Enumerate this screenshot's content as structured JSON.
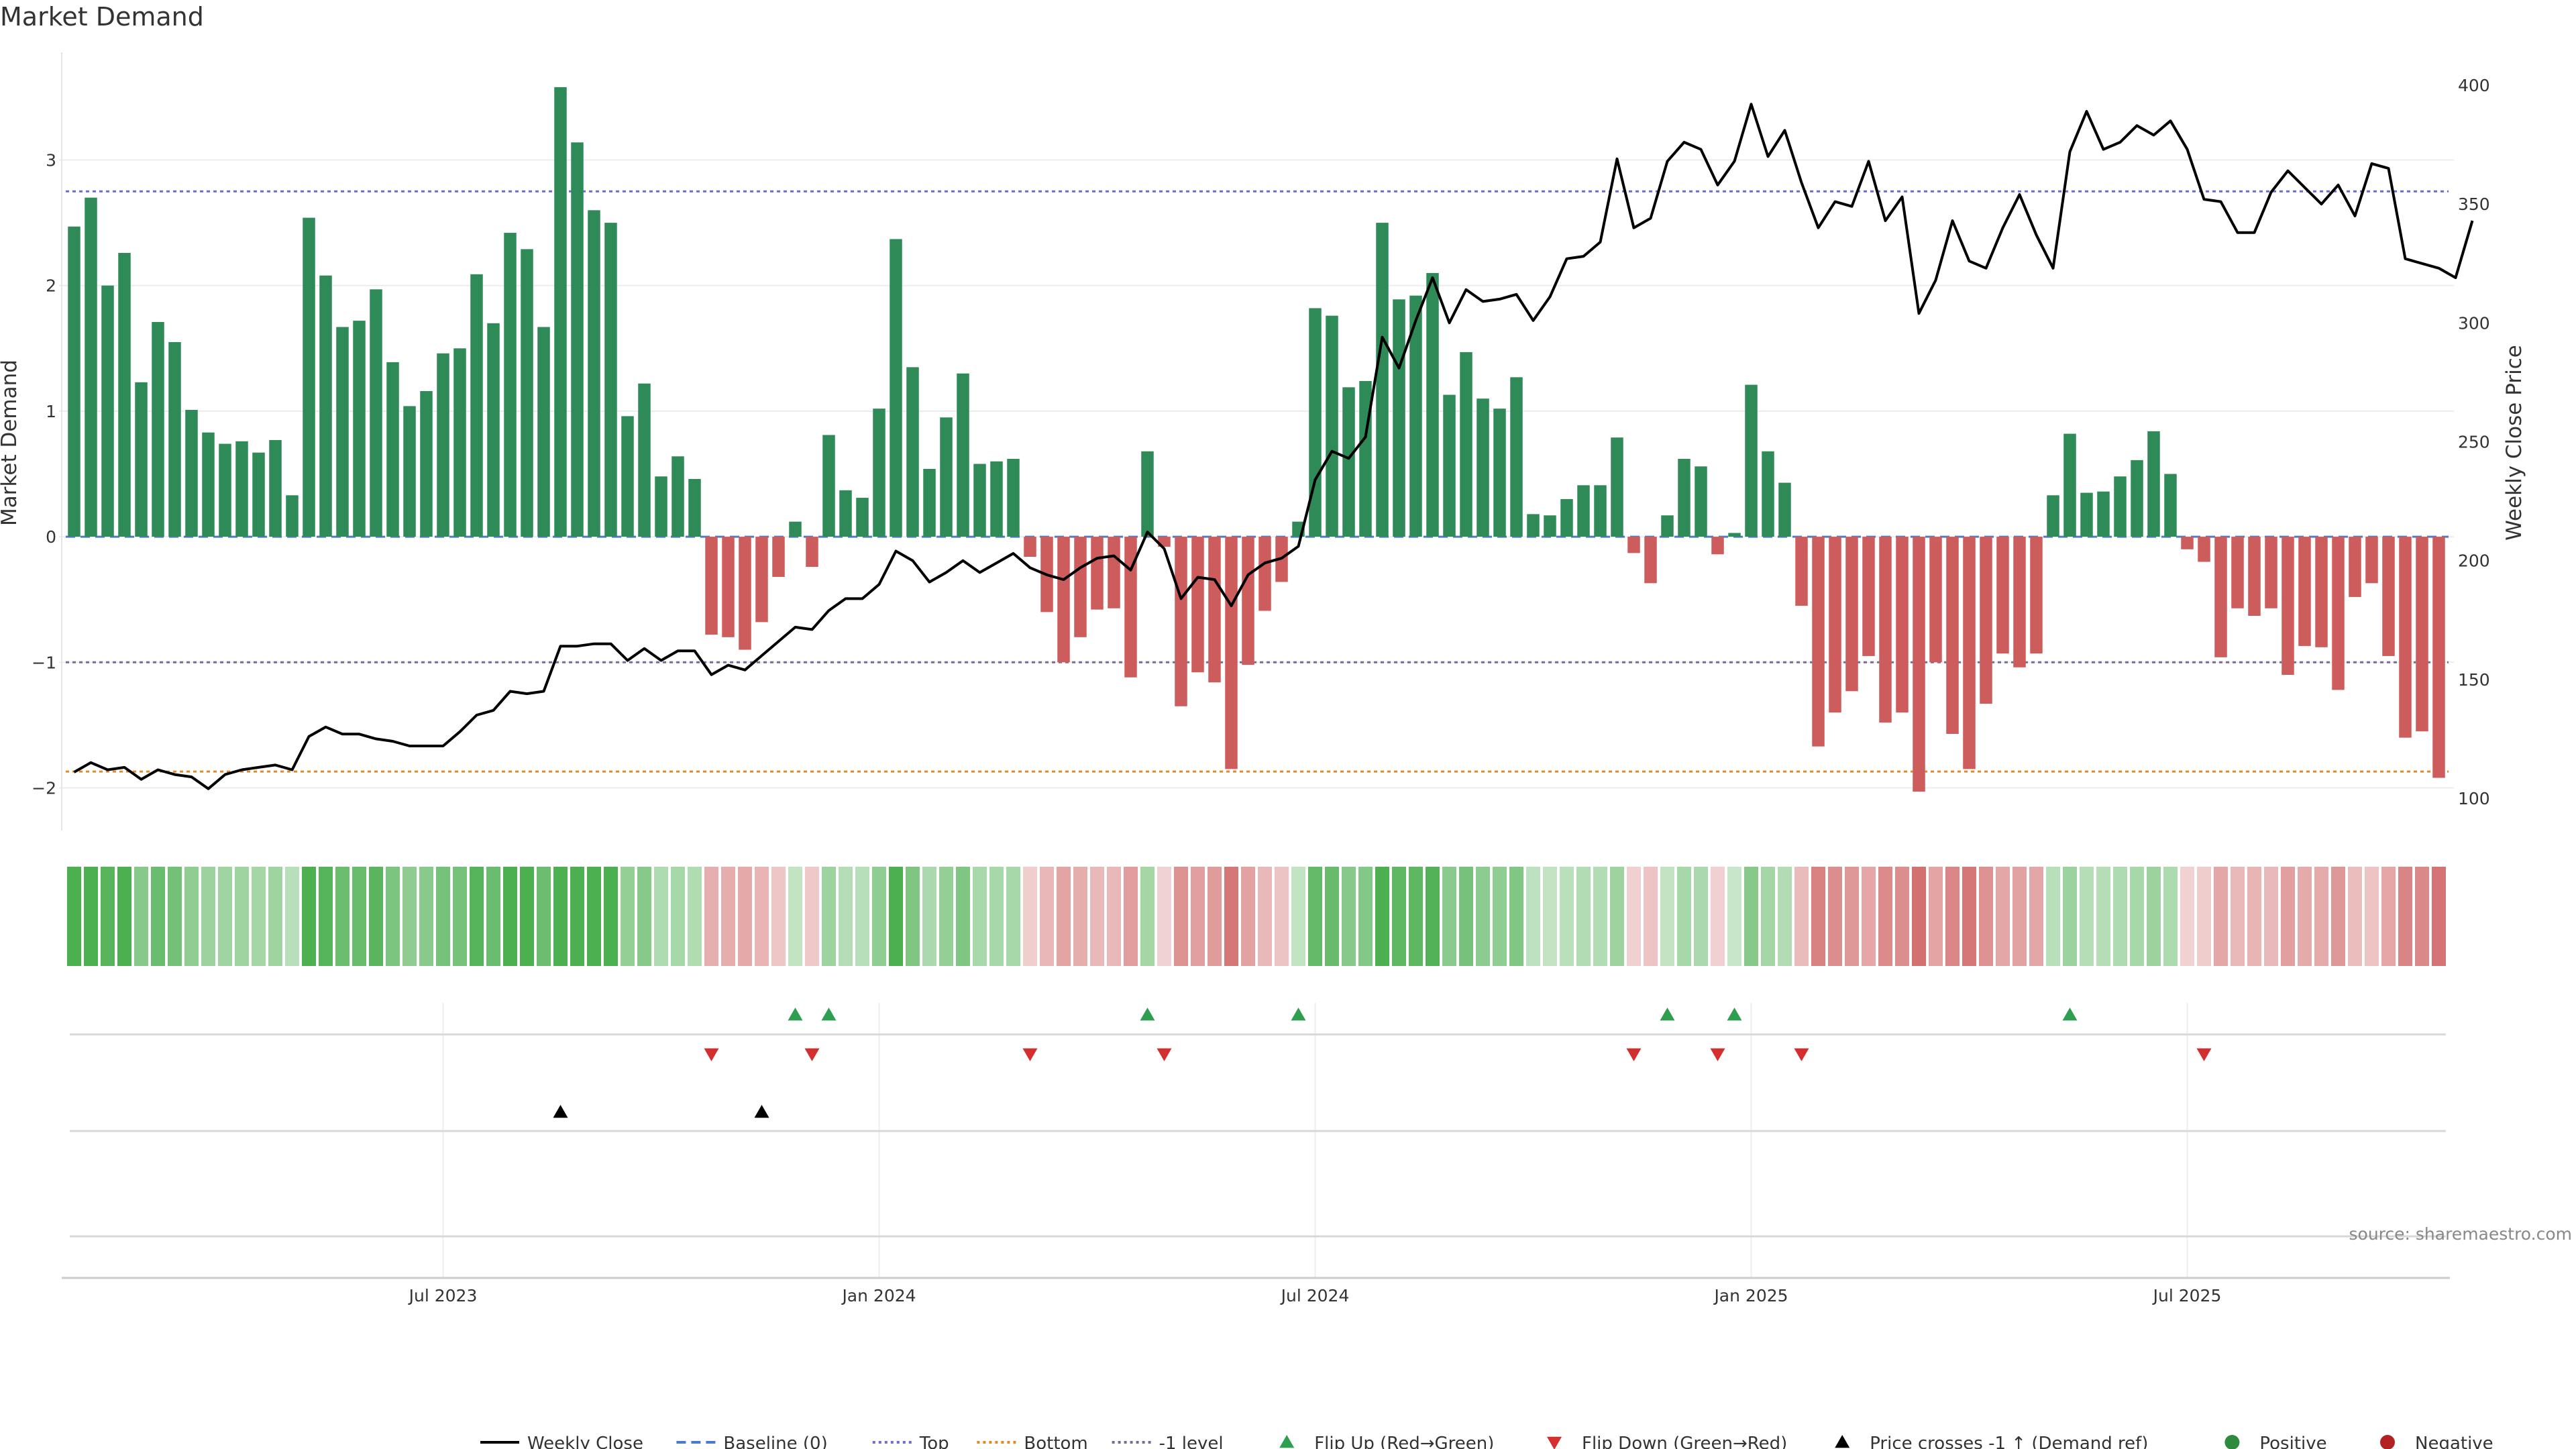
{
  "chart_data": {
    "type": "bar",
    "title": "Market Demand",
    "ylabel_left": "Market Demand",
    "ylabel_right": "Weekly Close Price",
    "source": "source: sharemaestro.com",
    "ylim_left": [
      -2.35,
      3.9
    ],
    "ylim_right": [
      100,
      400
    ],
    "yticks_left": [
      {
        "v": 3,
        "label": "3"
      },
      {
        "v": 2,
        "label": "2"
      },
      {
        "v": 1,
        "label": "1"
      },
      {
        "v": 0,
        "label": "0"
      },
      {
        "v": -1,
        "label": "−1"
      },
      {
        "v": -2,
        "label": "−2"
      }
    ],
    "yticks_right": [
      {
        "v": 400,
        "label": "400"
      },
      {
        "v": 350,
        "label": "350"
      },
      {
        "v": 300,
        "label": "300"
      },
      {
        "v": 250,
        "label": "250"
      },
      {
        "v": 200,
        "label": "200"
      },
      {
        "v": 150,
        "label": "150"
      },
      {
        "v": 100,
        "label": "100"
      }
    ],
    "xticks": [
      {
        "i": 22,
        "label": "Jul 2023"
      },
      {
        "i": 48,
        "label": "Jan 2024"
      },
      {
        "i": 74,
        "label": "Jul 2024"
      },
      {
        "i": 100,
        "label": "Jan 2025"
      },
      {
        "i": 126,
        "label": "Jul 2025"
      }
    ],
    "levels": {
      "top": 2.75,
      "bottom": -1.87,
      "minus_one": -1.0,
      "baseline": 0
    },
    "demand": [
      2.47,
      2.7,
      2.0,
      2.26,
      1.23,
      1.71,
      1.55,
      1.01,
      0.83,
      0.74,
      0.76,
      0.67,
      0.77,
      0.33,
      2.54,
      2.08,
      1.67,
      1.72,
      1.97,
      1.39,
      1.04,
      1.16,
      1.46,
      1.5,
      2.09,
      1.7,
      2.42,
      2.29,
      1.67,
      3.58,
      3.14,
      2.6,
      2.5,
      0.96,
      1.22,
      0.48,
      0.64,
      0.46,
      -0.78,
      -0.8,
      -0.9,
      -0.68,
      -0.32,
      0.12,
      -0.24,
      0.81,
      0.37,
      0.31,
      1.02,
      2.37,
      1.35,
      0.54,
      0.95,
      1.3,
      0.58,
      0.6,
      0.62,
      -0.16,
      -0.6,
      -1.0,
      -0.8,
      -0.58,
      -0.57,
      -1.12,
      0.68,
      -0.08,
      -1.35,
      -1.08,
      -1.16,
      -1.85,
      -1.02,
      -0.59,
      -0.36,
      0.12,
      1.82,
      1.76,
      1.19,
      1.24,
      2.5,
      1.89,
      1.92,
      2.1,
      1.13,
      1.47,
      1.1,
      1.02,
      1.27,
      0.18,
      0.17,
      0.3,
      0.41,
      0.41,
      0.79,
      -0.13,
      -0.37,
      0.17,
      0.62,
      0.56,
      -0.14,
      0.03,
      1.21,
      0.68,
      0.43,
      -0.55,
      -1.67,
      -1.4,
      -1.23,
      -0.95,
      -1.48,
      -1.4,
      -2.03,
      -1.0,
      -1.57,
      -1.85,
      -1.33,
      -0.93,
      -1.04,
      -0.93,
      0.33,
      0.82,
      0.35,
      0.36,
      0.48,
      0.61,
      0.84,
      0.5,
      -0.1,
      -0.2,
      -0.96,
      -0.57,
      -0.63,
      -0.57,
      -1.1,
      -0.87,
      -0.88,
      -1.22,
      -0.48,
      -0.37,
      -0.95,
      -1.6,
      -1.55,
      -1.92
    ],
    "close": [
      111,
      115,
      112,
      113,
      108,
      112,
      110,
      109,
      104,
      110,
      112,
      113,
      114,
      112,
      126,
      130,
      127,
      127,
      125,
      124,
      122,
      122,
      122,
      128,
      135,
      137,
      145,
      144,
      145,
      164,
      164,
      165,
      165,
      158,
      163,
      158,
      162,
      162,
      152,
      156,
      154,
      160,
      166,
      172,
      171,
      179,
      184,
      184,
      190,
      204,
      200,
      191,
      195,
      200,
      195,
      199,
      203,
      197,
      194,
      192,
      197,
      201,
      202,
      196,
      212,
      205,
      184,
      193,
      192,
      181,
      194,
      199,
      201,
      206,
      234,
      246,
      243,
      252,
      294,
      281,
      301,
      319,
      300,
      314,
      309,
      310,
      312,
      301,
      311,
      327,
      328,
      334,
      369,
      340,
      344,
      368,
      376,
      373,
      358,
      368,
      392,
      370,
      381,
      359,
      340,
      351,
      349,
      368,
      343,
      353,
      304,
      318,
      343,
      326,
      323,
      340,
      354,
      337,
      323,
      372,
      389,
      373,
      376,
      383,
      379,
      385,
      373,
      352,
      351,
      338,
      338,
      355,
      364,
      357,
      350,
      358,
      345,
      367,
      365,
      327,
      325,
      323,
      319,
      343
    ],
    "flip_up": [
      43,
      45,
      64,
      73,
      95,
      99,
      119
    ],
    "flip_down": [
      38,
      44,
      57,
      65,
      93,
      98,
      103,
      127
    ],
    "price_cross": [
      29,
      41
    ],
    "legend": [
      {
        "label": "Weekly Close",
        "kind": "line",
        "color": "#000000"
      },
      {
        "label": "Baseline (0)",
        "kind": "dash",
        "color": "#4a7bd0"
      },
      {
        "label": "Top",
        "kind": "dot",
        "color": "#7070d0"
      },
      {
        "label": "Bottom",
        "kind": "dot",
        "color": "#e08a2a"
      },
      {
        "label": "-1 level",
        "kind": "dot",
        "color": "#7a6a9a"
      },
      {
        "label": "Flip Up (Red→Green)",
        "kind": "tri-up",
        "color": "#2e9e4f"
      },
      {
        "label": "Flip Down (Green→Red)",
        "kind": "tri-down",
        "color": "#d32f2f"
      },
      {
        "label": "Price crosses -1 ↑ (Demand ref)",
        "kind": "tri-up",
        "color": "#000000"
      },
      {
        "label": "Positive",
        "kind": "circle",
        "color": "#2e8b3e"
      },
      {
        "label": "Negative",
        "kind": "circle",
        "color": "#b22222"
      }
    ],
    "colors": {
      "positive": "#2e8b57",
      "negative": "#cd5c5c",
      "close": "#000000"
    }
  }
}
